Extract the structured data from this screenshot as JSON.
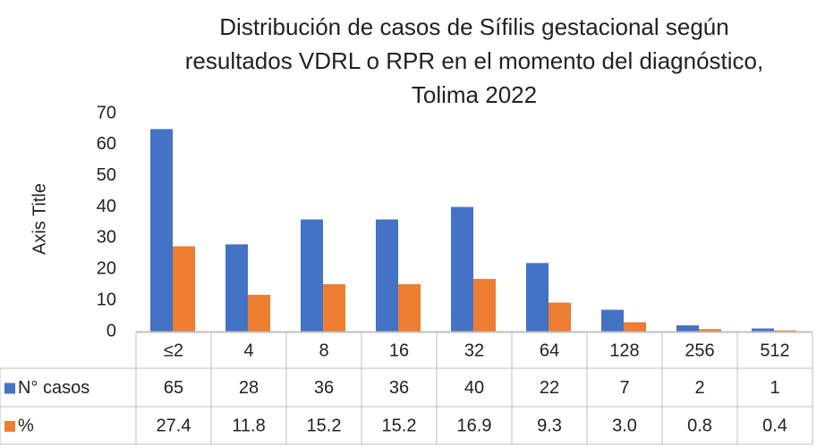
{
  "chart_data": {
    "type": "bar",
    "title": [
      "Distribución de casos de Sífilis gestacional según",
      "resultados VDRL o RPR en el momento del diagnóstico,",
      "Tolima 2022"
    ],
    "y_axis_label": "Axis Title",
    "categories": [
      "≤2",
      "4",
      "8",
      "16",
      "32",
      "64",
      "128",
      "256",
      "512"
    ],
    "series": [
      {
        "name": "N° casos",
        "color": "#4472c4",
        "values": [
          65,
          28,
          36,
          36,
          40,
          22,
          7,
          2,
          1
        ]
      },
      {
        "name": "%",
        "color": "#ed7d31",
        "values": [
          27.4,
          11.8,
          15.2,
          15.2,
          16.9,
          9.3,
          3,
          0.8,
          0.4
        ],
        "value_labels": [
          "27.4",
          "11.8",
          "15.2",
          "15.2",
          "16.9",
          "9.3",
          "3.0",
          "0.8",
          "0.4"
        ]
      }
    ],
    "ylim": [
      0,
      70
    ],
    "yticks": [
      0,
      10,
      20,
      30,
      40,
      50,
      60,
      70
    ],
    "grid": false,
    "data_table": true
  }
}
